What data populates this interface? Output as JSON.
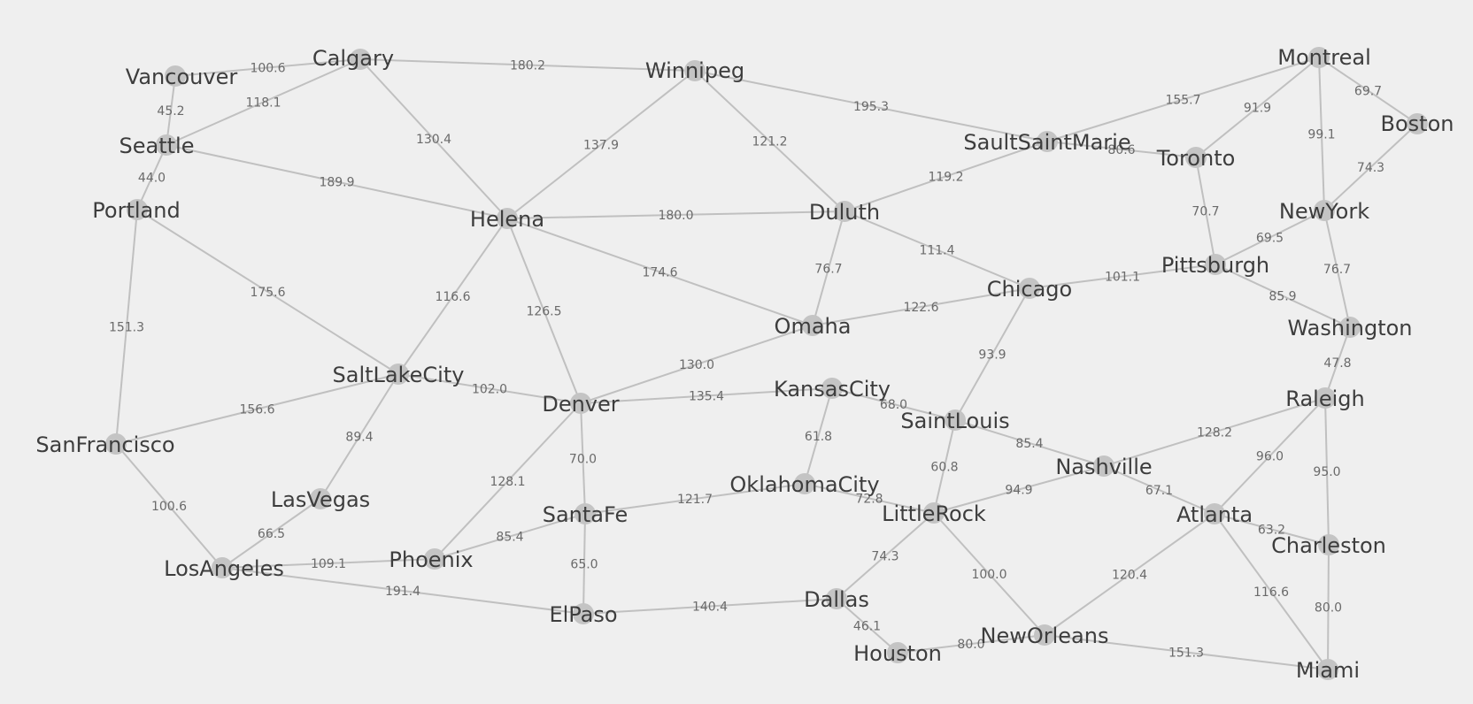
{
  "graph": {
    "colors": {
      "background": "#efefef",
      "edge": "#c0c0c0",
      "node": "#c4c4c4",
      "node_label": "#3d3d3d",
      "edge_label": "#6a6a6a"
    },
    "nodes": [
      {
        "id": "Vancouver",
        "label": "Vancouver"
      },
      {
        "id": "Calgary",
        "label": "Calgary"
      },
      {
        "id": "Winnipeg",
        "label": "Winnipeg"
      },
      {
        "id": "Montreal",
        "label": "Montreal"
      },
      {
        "id": "Boston",
        "label": "Boston"
      },
      {
        "id": "Seattle",
        "label": "Seattle"
      },
      {
        "id": "Portland",
        "label": "Portland"
      },
      {
        "id": "Helena",
        "label": "Helena"
      },
      {
        "id": "Duluth",
        "label": "Duluth"
      },
      {
        "id": "SaultSaintMarie",
        "label": "SaultSaintMarie"
      },
      {
        "id": "Toronto",
        "label": "Toronto"
      },
      {
        "id": "NewYork",
        "label": "NewYork"
      },
      {
        "id": "Pittsburgh",
        "label": "Pittsburgh"
      },
      {
        "id": "Chicago",
        "label": "Chicago"
      },
      {
        "id": "Omaha",
        "label": "Omaha"
      },
      {
        "id": "Washington",
        "label": "Washington"
      },
      {
        "id": "SaltLakeCity",
        "label": "SaltLakeCity"
      },
      {
        "id": "Denver",
        "label": "Denver"
      },
      {
        "id": "KansasCity",
        "label": "KansasCity"
      },
      {
        "id": "SaintLouis",
        "label": "SaintLouis"
      },
      {
        "id": "Raleigh",
        "label": "Raleigh"
      },
      {
        "id": "SanFrancisco",
        "label": "SanFrancisco"
      },
      {
        "id": "LasVegas",
        "label": "LasVegas"
      },
      {
        "id": "Nashville",
        "label": "Nashville"
      },
      {
        "id": "OklahomaCity",
        "label": "OklahomaCity"
      },
      {
        "id": "SantaFe",
        "label": "SantaFe"
      },
      {
        "id": "LittleRock",
        "label": "LittleRock"
      },
      {
        "id": "Atlanta",
        "label": "Atlanta"
      },
      {
        "id": "Charleston",
        "label": "Charleston"
      },
      {
        "id": "LosAngeles",
        "label": "LosAngeles"
      },
      {
        "id": "Phoenix",
        "label": "Phoenix"
      },
      {
        "id": "ElPaso",
        "label": "ElPaso"
      },
      {
        "id": "Dallas",
        "label": "Dallas"
      },
      {
        "id": "Houston",
        "label": "Houston"
      },
      {
        "id": "NewOrleans",
        "label": "NewOrleans"
      },
      {
        "id": "Miami",
        "label": "Miami"
      }
    ],
    "edges": [
      {
        "from": "Vancouver",
        "to": "Calgary",
        "label": "100.6"
      },
      {
        "from": "Vancouver",
        "to": "Seattle",
        "label": "45.2"
      },
      {
        "from": "Calgary",
        "to": "Winnipeg",
        "label": "180.2"
      },
      {
        "from": "Calgary",
        "to": "Seattle",
        "label": "118.1"
      },
      {
        "from": "Calgary",
        "to": "Helena",
        "label": "130.4"
      },
      {
        "from": "Seattle",
        "to": "Portland",
        "label": "44.0"
      },
      {
        "from": "Seattle",
        "to": "Helena",
        "label": "189.9"
      },
      {
        "from": "Winnipeg",
        "to": "Helena",
        "label": "137.9"
      },
      {
        "from": "Winnipeg",
        "to": "Duluth",
        "label": "121.2"
      },
      {
        "from": "Winnipeg",
        "to": "SaultSaintMarie",
        "label": "195.3"
      },
      {
        "from": "Montreal",
        "to": "SaultSaintMarie",
        "label": "155.7"
      },
      {
        "from": "Montreal",
        "to": "Toronto",
        "label": "91.9"
      },
      {
        "from": "Montreal",
        "to": "Boston",
        "label": "69.7"
      },
      {
        "from": "Montreal",
        "to": "NewYork",
        "label": "99.1"
      },
      {
        "from": "Boston",
        "to": "NewYork",
        "label": "74.3"
      },
      {
        "from": "SaultSaintMarie",
        "to": "Toronto",
        "label": "80.6"
      },
      {
        "from": "SaultSaintMarie",
        "to": "Duluth",
        "label": "119.2"
      },
      {
        "from": "Toronto",
        "to": "Pittsburgh",
        "label": "70.7"
      },
      {
        "from": "NewYork",
        "to": "Pittsburgh",
        "label": "69.5"
      },
      {
        "from": "NewYork",
        "to": "Washington",
        "label": "76.7"
      },
      {
        "from": "Pittsburgh",
        "to": "Washington",
        "label": "85.9"
      },
      {
        "from": "Pittsburgh",
        "to": "Chicago",
        "label": "101.1"
      },
      {
        "from": "Portland",
        "to": "SanFrancisco",
        "label": "151.3"
      },
      {
        "from": "Portland",
        "to": "SaltLakeCity",
        "label": "175.6"
      },
      {
        "from": "Helena",
        "to": "Duluth",
        "label": "180.0"
      },
      {
        "from": "Helena",
        "to": "Omaha",
        "label": "174.6"
      },
      {
        "from": "Helena",
        "to": "SaltLakeCity",
        "label": "116.6"
      },
      {
        "from": "Helena",
        "to": "Denver",
        "label": "126.5"
      },
      {
        "from": "Duluth",
        "to": "Omaha",
        "label": "76.7"
      },
      {
        "from": "Duluth",
        "to": "Chicago",
        "label": "111.4"
      },
      {
        "from": "Chicago",
        "to": "Omaha",
        "label": "122.6"
      },
      {
        "from": "Chicago",
        "to": "SaintLouis",
        "label": "93.9"
      },
      {
        "from": "Omaha",
        "to": "Denver",
        "label": "130.0"
      },
      {
        "from": "Washington",
        "to": "Raleigh",
        "label": "47.8"
      },
      {
        "from": "SaltLakeCity",
        "to": "Denver",
        "label": "102.0"
      },
      {
        "from": "SaltLakeCity",
        "to": "SanFrancisco",
        "label": "156.6"
      },
      {
        "from": "SaltLakeCity",
        "to": "LasVegas",
        "label": "89.4"
      },
      {
        "from": "Denver",
        "to": "KansasCity",
        "label": "135.4"
      },
      {
        "from": "Denver",
        "to": "SantaFe",
        "label": "70.0"
      },
      {
        "from": "Denver",
        "to": "Phoenix",
        "label": "128.1"
      },
      {
        "from": "KansasCity",
        "to": "SaintLouis",
        "label": "68.0"
      },
      {
        "from": "KansasCity",
        "to": "OklahomaCity",
        "label": "61.8"
      },
      {
        "from": "SaintLouis",
        "to": "Nashville",
        "label": "85.4"
      },
      {
        "from": "SaintLouis",
        "to": "LittleRock",
        "label": "60.8"
      },
      {
        "from": "Raleigh",
        "to": "Nashville",
        "label": "128.2"
      },
      {
        "from": "Raleigh",
        "to": "Atlanta",
        "label": "96.0"
      },
      {
        "from": "Raleigh",
        "to": "Charleston",
        "label": "95.0"
      },
      {
        "from": "SanFrancisco",
        "to": "LosAngeles",
        "label": "100.6"
      },
      {
        "from": "LasVegas",
        "to": "LosAngeles",
        "label": "66.5"
      },
      {
        "from": "Nashville",
        "to": "LittleRock",
        "label": "94.9"
      },
      {
        "from": "Nashville",
        "to": "Atlanta",
        "label": "67.1"
      },
      {
        "from": "OklahomaCity",
        "to": "SantaFe",
        "label": "121.7"
      },
      {
        "from": "OklahomaCity",
        "to": "LittleRock",
        "label": "72.8"
      },
      {
        "from": "SantaFe",
        "to": "Phoenix",
        "label": "85.4"
      },
      {
        "from": "SantaFe",
        "to": "ElPaso",
        "label": "65.0"
      },
      {
        "from": "LittleRock",
        "to": "Dallas",
        "label": "74.3"
      },
      {
        "from": "LittleRock",
        "to": "NewOrleans",
        "label": "100.0"
      },
      {
        "from": "Atlanta",
        "to": "Charleston",
        "label": "63.2"
      },
      {
        "from": "Atlanta",
        "to": "NewOrleans",
        "label": "120.4"
      },
      {
        "from": "Atlanta",
        "to": "Miami",
        "label": "116.6"
      },
      {
        "from": "Charleston",
        "to": "Miami",
        "label": "80.0"
      },
      {
        "from": "LosAngeles",
        "to": "Phoenix",
        "label": "109.1"
      },
      {
        "from": "LosAngeles",
        "to": "ElPaso",
        "label": "191.4"
      },
      {
        "from": "ElPaso",
        "to": "Dallas",
        "label": "140.4"
      },
      {
        "from": "Dallas",
        "to": "Houston",
        "label": "46.1"
      },
      {
        "from": "Houston",
        "to": "NewOrleans",
        "label": "80.0"
      },
      {
        "from": "NewOrleans",
        "to": "Miami",
        "label": "151.3"
      }
    ]
  }
}
